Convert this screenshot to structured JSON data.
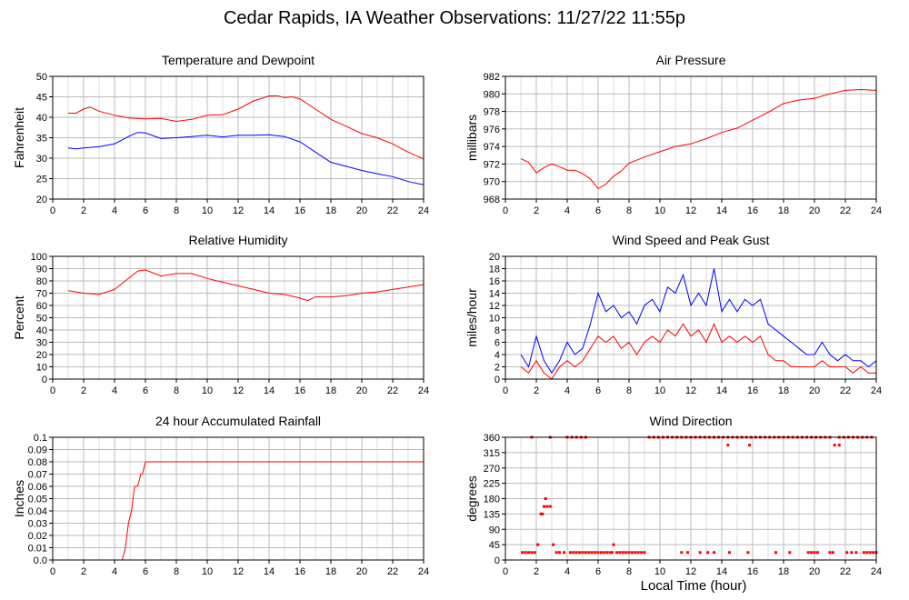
{
  "title": "Cedar Rapids, IA Weather Observations: 11/27/22 11:55p",
  "xaxis_caption": "Local Time (hour)",
  "colors": {
    "series_a": "#ff0000",
    "series_b": "#0000ff",
    "grid": "#bbbbbb"
  },
  "chart_data": [
    {
      "id": "temp",
      "type": "line",
      "title": "Temperature and Dewpoint",
      "ylabel": "Fahrenheit",
      "xlim": [
        0,
        24
      ],
      "ylim": [
        20,
        50
      ],
      "yticks": [
        20,
        25,
        30,
        35,
        40,
        45,
        50
      ],
      "xticks": [
        0,
        2,
        4,
        6,
        8,
        10,
        12,
        14,
        16,
        18,
        20,
        22,
        24
      ],
      "grid": true,
      "series": [
        {
          "color": "#ff0000",
          "x": [
            1,
            1.5,
            2,
            2.4,
            3,
            4,
            5,
            6,
            7,
            8,
            9,
            10,
            11,
            12,
            13,
            14,
            14.5,
            15,
            15.5,
            16,
            17,
            18,
            19,
            20,
            21,
            22,
            23,
            24
          ],
          "y": [
            41,
            41,
            42,
            42.5,
            41.5,
            40.5,
            39.8,
            39.6,
            39.7,
            39,
            39.5,
            40.5,
            40.6,
            42,
            44,
            45.2,
            45.3,
            44.8,
            45,
            44.5,
            42,
            39.5,
            37.8,
            36,
            35,
            33.5,
            31.5,
            29.8
          ]
        },
        {
          "color": "#0000ff",
          "x": [
            1,
            1.5,
            2,
            3,
            4,
            5,
            5.5,
            6,
            7,
            8,
            9,
            10,
            11,
            12,
            13,
            14,
            15,
            16,
            17,
            18,
            19,
            20,
            21,
            22,
            23,
            24
          ],
          "y": [
            32.5,
            32.3,
            32.5,
            32.8,
            33.5,
            35.5,
            36.3,
            36.2,
            34.8,
            35,
            35.3,
            35.6,
            35.2,
            35.6,
            35.6,
            35.7,
            35.3,
            34,
            31.5,
            29,
            28,
            27,
            26.2,
            25.5,
            24.3,
            23.5
          ]
        }
      ]
    },
    {
      "id": "pres",
      "type": "line",
      "title": "Air Pressure",
      "ylabel": "millibars",
      "xlim": [
        0,
        24
      ],
      "ylim": [
        968,
        982
      ],
      "yticks": [
        968,
        970,
        972,
        974,
        976,
        978,
        980,
        982
      ],
      "xticks": [
        0,
        2,
        4,
        6,
        8,
        10,
        12,
        14,
        16,
        18,
        20,
        22,
        24
      ],
      "grid": true,
      "series": [
        {
          "color": "#ff0000",
          "x": [
            1,
            1.5,
            2,
            2.5,
            3,
            3.5,
            4,
            4.5,
            5,
            5.5,
            6,
            6.5,
            7,
            7.5,
            8,
            9,
            10,
            11,
            12,
            13,
            14,
            15,
            16,
            17,
            18,
            19,
            20,
            21,
            22,
            23,
            24
          ],
          "y": [
            972.6,
            972.2,
            971,
            971.6,
            972,
            971.7,
            971.3,
            971.3,
            970.9,
            970.3,
            969.2,
            969.7,
            970.6,
            971.2,
            972.1,
            972.8,
            973.4,
            974,
            974.3,
            974.9,
            975.6,
            976.1,
            977,
            977.9,
            978.9,
            979.3,
            979.5,
            980,
            980.4,
            980.5,
            980.4
          ]
        }
      ]
    },
    {
      "id": "rh",
      "type": "line",
      "title": "Relative Humidity",
      "ylabel": "Percent",
      "xlim": [
        0,
        24
      ],
      "ylim": [
        0,
        100
      ],
      "yticks": [
        0,
        10,
        20,
        30,
        40,
        50,
        60,
        70,
        80,
        90,
        100
      ],
      "xticks": [
        0,
        2,
        4,
        6,
        8,
        10,
        12,
        14,
        16,
        18,
        20,
        22,
        24
      ],
      "grid": true,
      "series": [
        {
          "color": "#ff0000",
          "x": [
            1,
            2,
            3,
            4,
            5,
            5.5,
            6,
            7,
            8,
            9,
            10,
            11,
            12,
            13,
            14,
            15,
            16,
            16.5,
            17,
            18,
            19,
            20,
            21,
            22,
            23,
            24
          ],
          "y": [
            72,
            70,
            69,
            73,
            83,
            88,
            89,
            84,
            86,
            86,
            82,
            79,
            76,
            73,
            70,
            69,
            66,
            64,
            67,
            67,
            68,
            70,
            71,
            73,
            75,
            77
          ]
        }
      ]
    },
    {
      "id": "wind",
      "type": "line",
      "title": "Wind Speed and Peak Gust",
      "ylabel": "miles/hour",
      "xlim": [
        0,
        24
      ],
      "ylim": [
        0,
        20
      ],
      "yticks": [
        0,
        2,
        4,
        6,
        8,
        10,
        12,
        14,
        16,
        18,
        20
      ],
      "xticks": [
        0,
        2,
        4,
        6,
        8,
        10,
        12,
        14,
        16,
        18,
        20,
        22,
        24
      ],
      "grid": true,
      "series": [
        {
          "color": "#0000ff",
          "x": [
            1,
            1.5,
            2,
            2.5,
            3,
            3.5,
            4,
            4.5,
            5,
            5.5,
            6,
            6.5,
            7,
            7.5,
            8,
            8.5,
            9,
            9.5,
            10,
            10.5,
            11,
            11.5,
            12,
            12.5,
            13,
            13.5,
            14,
            14.5,
            15,
            15.5,
            16,
            16.5,
            17,
            17.5,
            18,
            18.5,
            19,
            19.5,
            20,
            20.5,
            21,
            21.5,
            22,
            22.5,
            23,
            23.5,
            24
          ],
          "y": [
            4,
            2,
            7,
            3,
            1,
            3,
            6,
            4,
            5,
            9,
            14,
            11,
            12,
            10,
            11,
            9,
            12,
            13,
            11,
            15,
            14,
            17,
            12,
            14,
            12,
            18,
            11,
            13,
            11,
            13,
            12,
            13,
            9,
            8,
            7,
            6,
            5,
            4,
            4,
            6,
            4,
            3,
            4,
            3,
            3,
            2,
            3
          ]
        },
        {
          "color": "#ff0000",
          "x": [
            1,
            1.5,
            2,
            2.5,
            3,
            3.5,
            4,
            4.5,
            5,
            5.5,
            6,
            6.5,
            7,
            7.5,
            8,
            8.5,
            9,
            9.5,
            10,
            10.5,
            11,
            11.5,
            12,
            12.5,
            13,
            13.5,
            14,
            14.5,
            15,
            15.5,
            16,
            16.5,
            17,
            17.5,
            18,
            18.5,
            19,
            19.5,
            20,
            20.5,
            21,
            21.5,
            22,
            22.5,
            23,
            23.5,
            24
          ],
          "y": [
            2,
            1,
            3,
            1,
            0,
            2,
            3,
            2,
            3,
            5,
            7,
            6,
            7,
            5,
            6,
            4,
            6,
            7,
            6,
            8,
            7,
            9,
            7,
            8,
            6,
            9,
            6,
            7,
            6,
            7,
            6,
            7,
            4,
            3,
            3,
            2,
            2,
            2,
            2,
            3,
            2,
            2,
            2,
            1,
            2,
            1,
            1
          ]
        }
      ]
    },
    {
      "id": "rain",
      "type": "line",
      "title": "24 hour Accumulated Rainfall",
      "ylabel": "Inches",
      "xlim": [
        0,
        24
      ],
      "ylim": [
        0,
        0.1
      ],
      "yticks": [
        0.0,
        0.01,
        0.02,
        0.03,
        0.04,
        0.05,
        0.06,
        0.07,
        0.08,
        0.09,
        0.1
      ],
      "ytick_labels": [
        "0.0",
        "0.01",
        "0.02",
        "0.03",
        "0.04",
        "0.05",
        "0.06",
        "0.07",
        "0.08",
        "0.09",
        "0.1"
      ],
      "xticks": [
        0,
        2,
        4,
        6,
        8,
        10,
        12,
        14,
        16,
        18,
        20,
        22,
        24
      ],
      "grid": true,
      "series": [
        {
          "color": "#ff0000",
          "x": [
            1,
            4.5,
            4.7,
            4.9,
            5.1,
            5.3,
            5.5,
            5.7,
            5.8,
            6,
            24
          ],
          "y": [
            0,
            0,
            0.01,
            0.03,
            0.04,
            0.06,
            0.06,
            0.07,
            0.07,
            0.08,
            0.08
          ]
        }
      ]
    },
    {
      "id": "dir",
      "type": "scatter",
      "title": "Wind Direction",
      "ylabel": "degrees",
      "xlim": [
        0,
        24
      ],
      "ylim": [
        0,
        360
      ],
      "yticks": [
        0,
        45,
        90,
        135,
        180,
        225,
        270,
        315,
        360
      ],
      "xticks": [
        0,
        2,
        4,
        6,
        8,
        10,
        12,
        14,
        16,
        18,
        20,
        22,
        24
      ],
      "grid": true,
      "series": [
        {
          "color": "#ff0000",
          "x": [
            1.1,
            1.3,
            1.5,
            1.7,
            1.9,
            2.1,
            2.3,
            2.4,
            2.5,
            2.6,
            2.7,
            2.9,
            3.1,
            3.3,
            3.5,
            3.8,
            4.2,
            4.4,
            4.6,
            4.8,
            5.0,
            5.2,
            5.4,
            5.6,
            5.8,
            6.0,
            6.2,
            6.4,
            6.6,
            6.8,
            7.0,
            7.2,
            7.4,
            7.6,
            7.8,
            8.0,
            8.2,
            8.4,
            8.6,
            8.8,
            9.0,
            1.7,
            2.9,
            4.0,
            4.3,
            4.6,
            4.9,
            5.2,
            6.9,
            11.4,
            11.8,
            12.6,
            13.1,
            13.5,
            14.5,
            15.7,
            17.5,
            18.4,
            19.6,
            19.8,
            20.0,
            20.2,
            21.0,
            21.2,
            22.1,
            22.4,
            22.7,
            23.2,
            23.4,
            23.6,
            23.8,
            24.0,
            9.3,
            9.6,
            9.9,
            10.2,
            10.5,
            10.8,
            11.1,
            11.4,
            11.7,
            12.0,
            12.3,
            12.6,
            12.9,
            13.2,
            13.5,
            13.8,
            14.1,
            14.4,
            14.7,
            15.0,
            15.3,
            15.6,
            15.9,
            16.2,
            16.5,
            16.8,
            17.1,
            17.4,
            17.7,
            18.0,
            18.3,
            18.6,
            18.9,
            19.2,
            19.5,
            19.8,
            20.1,
            20.4,
            20.7,
            21.0,
            21.6,
            21.9,
            22.2,
            22.5,
            22.8,
            23.1,
            23.4,
            23.7,
            14.4,
            15.8,
            21.3,
            21.6
          ],
          "y": [
            22,
            22,
            22,
            22,
            22,
            45,
            135,
            135,
            157,
            180,
            157,
            157,
            45,
            22,
            22,
            22,
            22,
            22,
            22,
            22,
            22,
            22,
            22,
            22,
            22,
            22,
            22,
            22,
            22,
            22,
            45,
            22,
            22,
            22,
            22,
            22,
            22,
            22,
            22,
            22,
            22,
            360,
            360,
            360,
            360,
            360,
            360,
            360,
            22,
            22,
            22,
            22,
            22,
            22,
            22,
            22,
            22,
            22,
            22,
            22,
            22,
            22,
            22,
            22,
            22,
            22,
            22,
            22,
            22,
            22,
            22,
            22,
            360,
            360,
            360,
            360,
            360,
            360,
            360,
            360,
            360,
            360,
            360,
            360,
            360,
            360,
            360,
            360,
            360,
            360,
            360,
            360,
            360,
            360,
            360,
            360,
            360,
            360,
            360,
            360,
            360,
            360,
            360,
            360,
            360,
            360,
            360,
            360,
            360,
            360,
            360,
            360,
            360,
            360,
            360,
            360,
            360,
            360,
            360,
            360,
            337,
            337,
            337,
            337
          ]
        }
      ]
    }
  ]
}
